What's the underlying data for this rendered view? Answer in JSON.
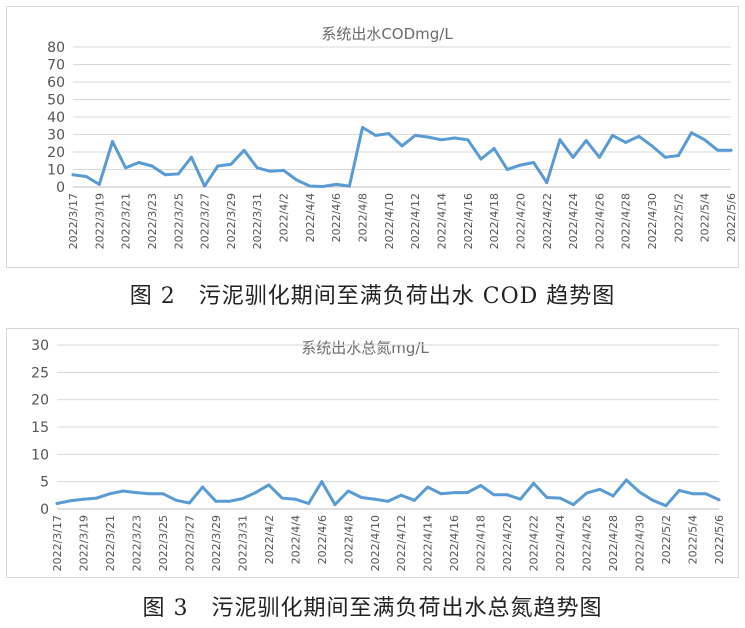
{
  "captions": {
    "fig2": "图 2　污泥驯化期间至满负荷出水 COD 趋势图",
    "fig3": "图 3　污泥驯化期间至满负荷出水总氮趋势图"
  },
  "colors": {
    "line": "#5b9bd5",
    "grid": "#d9d9d9",
    "axis": "#bfbfbf"
  },
  "chart_data": [
    {
      "type": "line",
      "title": "系统出水CODmg/L",
      "xlabel": "",
      "ylabel": "",
      "ylim": [
        0,
        80
      ],
      "yticks": [
        0,
        10,
        20,
        30,
        40,
        50,
        60,
        70,
        80
      ],
      "grid": true,
      "x": [
        "2022/3/17",
        "2022/3/18",
        "2022/3/19",
        "2022/3/20",
        "2022/3/21",
        "2022/3/22",
        "2022/3/23",
        "2022/3/24",
        "2022/3/25",
        "2022/3/26",
        "2022/3/27",
        "2022/3/28",
        "2022/3/29",
        "2022/3/30",
        "2022/3/31",
        "2022/4/1",
        "2022/4/2",
        "2022/4/3",
        "2022/4/4",
        "2022/4/5",
        "2022/4/6",
        "2022/4/7",
        "2022/4/8",
        "2022/4/9",
        "2022/4/10",
        "2022/4/11",
        "2022/4/12",
        "2022/4/13",
        "2022/4/14",
        "2022/4/15",
        "2022/4/16",
        "2022/4/17",
        "2022/4/18",
        "2022/4/19",
        "2022/4/20",
        "2022/4/21",
        "2022/4/22",
        "2022/4/23",
        "2022/4/24",
        "2022/4/25",
        "2022/4/26",
        "2022/4/27",
        "2022/4/28",
        "2022/4/29",
        "2022/4/30",
        "2022/5/1",
        "2022/5/2",
        "2022/5/3",
        "2022/5/4",
        "2022/5/5",
        "2022/5/6"
      ],
      "xticks": [
        "2022/3/17",
        "2022/3/19",
        "2022/3/21",
        "2022/3/23",
        "2022/3/25",
        "2022/3/27",
        "2022/3/29",
        "2022/3/31",
        "2022/4/2",
        "2022/4/4",
        "2022/4/6",
        "2022/4/8",
        "2022/4/10",
        "2022/4/12",
        "2022/4/14",
        "2022/4/16",
        "2022/4/18",
        "2022/4/20",
        "2022/4/22",
        "2022/4/24",
        "2022/4/26",
        "2022/4/28",
        "2022/4/30",
        "2022/5/2",
        "2022/5/4",
        "2022/5/6"
      ],
      "series": [
        {
          "values": [
            7,
            6,
            1.5,
            26,
            11,
            14,
            12,
            7,
            7.5,
            17,
            0.5,
            12,
            13,
            21,
            11,
            9,
            9.5,
            4,
            0.5,
            0.3,
            1.5,
            0.5,
            34,
            29.5,
            30.5,
            23.5,
            29.5,
            28.5,
            27,
            28,
            27,
            16,
            22,
            10,
            12.5,
            14,
            2.5,
            27,
            17,
            26.5,
            17,
            29.5,
            25.5,
            29,
            23.5,
            17,
            18,
            31,
            27,
            21,
            21
          ]
        }
      ]
    },
    {
      "type": "line",
      "title": "系统出水总氮mg/L",
      "xlabel": "",
      "ylabel": "",
      "ylim": [
        0,
        30
      ],
      "yticks": [
        0,
        5,
        10,
        15,
        20,
        25,
        30
      ],
      "grid": true,
      "x": [
        "2022/3/17",
        "2022/3/18",
        "2022/3/19",
        "2022/3/20",
        "2022/3/21",
        "2022/3/22",
        "2022/3/23",
        "2022/3/24",
        "2022/3/25",
        "2022/3/26",
        "2022/3/27",
        "2022/3/28",
        "2022/3/29",
        "2022/3/30",
        "2022/3/31",
        "2022/4/1",
        "2022/4/2",
        "2022/4/3",
        "2022/4/4",
        "2022/4/5",
        "2022/4/6",
        "2022/4/7",
        "2022/4/8",
        "2022/4/9",
        "2022/4/10",
        "2022/4/11",
        "2022/4/12",
        "2022/4/13",
        "2022/4/14",
        "2022/4/15",
        "2022/4/16",
        "2022/4/17",
        "2022/4/18",
        "2022/4/19",
        "2022/4/20",
        "2022/4/21",
        "2022/4/22",
        "2022/4/23",
        "2022/4/24",
        "2022/4/25",
        "2022/4/26",
        "2022/4/27",
        "2022/4/28",
        "2022/4/29",
        "2022/4/30",
        "2022/5/1",
        "2022/5/2",
        "2022/5/3",
        "2022/5/4",
        "2022/5/5",
        "2022/5/6"
      ],
      "xticks": [
        "2022/3/17",
        "2022/3/19",
        "2022/3/21",
        "2022/3/23",
        "2022/3/25",
        "2022/3/27",
        "2022/3/29",
        "2022/3/31",
        "2022/4/2",
        "2022/4/4",
        "2022/4/6",
        "2022/4/8",
        "2022/4/10",
        "2022/4/12",
        "2022/4/14",
        "2022/4/16",
        "2022/4/18",
        "2022/4/20",
        "2022/4/22",
        "2022/4/24",
        "2022/4/26",
        "2022/4/28",
        "2022/4/30",
        "2022/5/2",
        "2022/5/4",
        "2022/5/6"
      ],
      "series": [
        {
          "values": [
            1,
            1.5,
            1.8,
            2,
            2.8,
            3.3,
            3,
            2.8,
            2.8,
            1.6,
            1.1,
            4,
            1.4,
            1.4,
            1.9,
            3,
            4.4,
            2,
            1.8,
            1,
            5,
            0.8,
            3.3,
            2.1,
            1.8,
            1.4,
            2.5,
            1.6,
            4,
            2.8,
            3,
            3,
            4.3,
            2.6,
            2.6,
            1.8,
            4.7,
            2.1,
            2,
            0.8,
            2.9,
            3.6,
            2.4,
            5.3,
            3.1,
            1.6,
            0.6,
            3.4,
            2.8,
            2.8,
            1.7
          ]
        }
      ]
    }
  ]
}
